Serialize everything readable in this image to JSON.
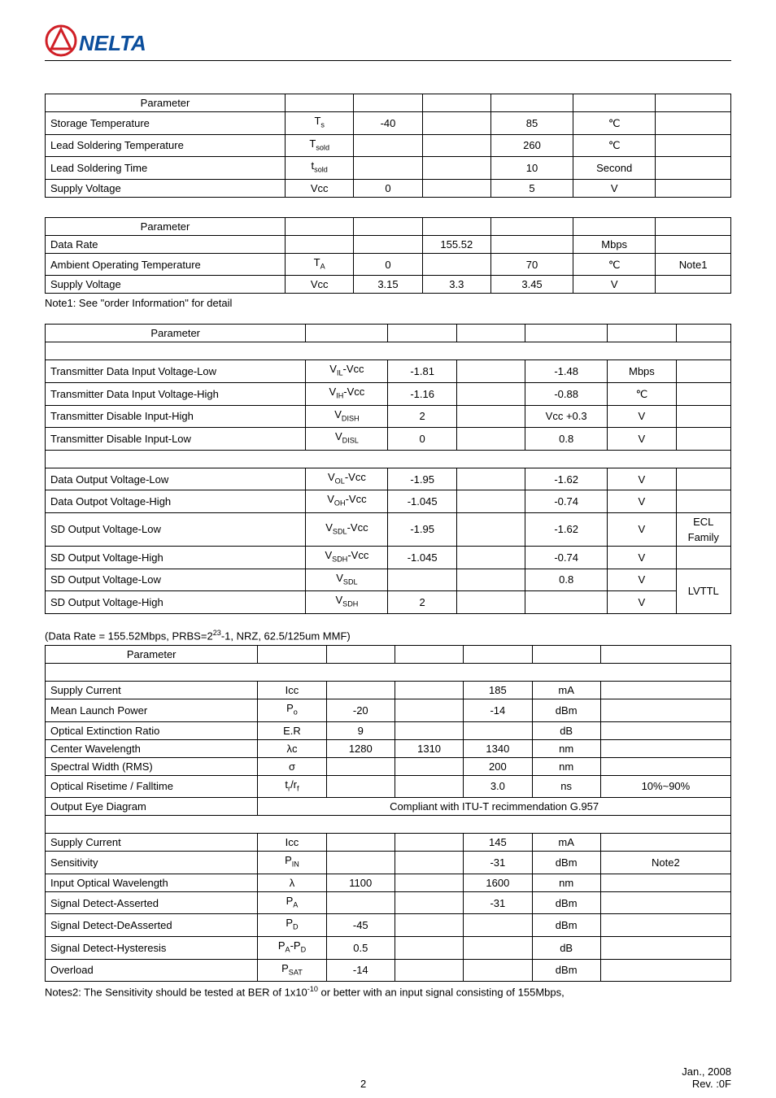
{
  "logo": {
    "text_left": "A",
    "text_right": "NELTA",
    "red": "#d01f26",
    "blue": "#0b4e9c"
  },
  "table1": {
    "col_widths": [
      "35%",
      "10%",
      "10%",
      "10%",
      "12%",
      "12%",
      "11%"
    ],
    "header": [
      "Parameter",
      "",
      "",
      "",
      "",
      "",
      ""
    ],
    "rows": [
      {
        "param": "Storage Temperature",
        "sym": "T<sub>s</sub>",
        "min": "-40",
        "typ": "",
        "max": "85",
        "unit": "℃",
        "note": ""
      },
      {
        "param": "Lead Soldering Temperature",
        "sym": "T<sub>sold</sub>",
        "min": "",
        "typ": "",
        "max": "260",
        "unit": "℃",
        "note": ""
      },
      {
        "param": "Lead Soldering Time",
        "sym": "t<sub>sold</sub>",
        "min": "",
        "typ": "",
        "max": "10",
        "unit": "Second",
        "note": ""
      },
      {
        "param": "Supply Voltage",
        "sym": "Vcc",
        "min": "0",
        "typ": "",
        "max": "5",
        "unit": "V",
        "note": ""
      }
    ]
  },
  "table2": {
    "col_widths": [
      "35%",
      "10%",
      "10%",
      "10%",
      "12%",
      "12%",
      "11%"
    ],
    "header": [
      "Parameter",
      "",
      "",
      "",
      "",
      "",
      ""
    ],
    "rows": [
      {
        "param": "Data Rate",
        "sym": "",
        "min": "",
        "typ": "155.52",
        "max": "",
        "unit": "Mbps",
        "note": ""
      },
      {
        "param": "Ambient Operating Temperature",
        "sym": "T<sub>A</sub>",
        "min": "0",
        "typ": "",
        "max": "70",
        "unit": "℃",
        "note": "Note1"
      },
      {
        "param": "Supply Voltage",
        "sym": "Vcc",
        "min": "3.15",
        "typ": "3.3",
        "max": "3.45",
        "unit": "V",
        "note": ""
      }
    ],
    "footnote": "Note1: See \"order Information\" for detail"
  },
  "table3": {
    "col_widths": [
      "38%",
      "12%",
      "10%",
      "10%",
      "12%",
      "10%",
      "8%"
    ],
    "header": [
      "Parameter",
      "",
      "",
      "",
      "",
      "",
      ""
    ],
    "sections": [
      {
        "subhead": "",
        "rows": [
          {
            "param": "Transmitter Data Input Voltage-Low",
            "sym": "V<sub>IL</sub>-Vcc",
            "min": "-1.81",
            "typ": "",
            "max": "-1.48",
            "unit": "Mbps",
            "note": ""
          },
          {
            "param": "Transmitter Data Input Voltage-High",
            "sym": "V<sub>IH</sub>-Vcc",
            "min": "-1.16",
            "typ": "",
            "max": "-0.88",
            "unit": "℃",
            "note": ""
          },
          {
            "param": "Transmitter Disable Input-High",
            "sym": "V<sub>DISH</sub>",
            "min": "2",
            "typ": "",
            "max": "Vcc +0.3",
            "unit": "V",
            "note": ""
          },
          {
            "param": "Transmitter Disable Input-Low",
            "sym": "V<sub>DISL</sub>",
            "min": "0",
            "typ": "",
            "max": "0.8",
            "unit": "V",
            "note": ""
          }
        ]
      },
      {
        "subhead": "",
        "rows": [
          {
            "param": "Data Output Voltage-Low",
            "sym": "V<sub>OL</sub>-Vcc",
            "min": "-1.95",
            "typ": "",
            "max": "-1.62",
            "unit": "V",
            "note": ""
          },
          {
            "param": "Data Outpot Voltage-High",
            "sym": "V<sub>OH</sub>-Vcc",
            "min": "-1.045",
            "typ": "",
            "max": "-0.74",
            "unit": "V",
            "note": ""
          },
          {
            "param": "SD Output Voltage-Low",
            "sym": "V<sub>SDL</sub>-Vcc",
            "min": "-1.95",
            "typ": "",
            "max": "-1.62",
            "unit": "V",
            "note": "ECL Family"
          },
          {
            "param": "SD Output Voltage-High",
            "sym": "V<sub>SDH</sub>-Vcc",
            "min": "-1.045",
            "typ": "",
            "max": "-0.74",
            "unit": "V",
            "note": ""
          },
          {
            "param": "SD Output Voltage-Low",
            "sym": "V<sub>SDL</sub>",
            "min": "",
            "typ": "",
            "max": "0.8",
            "unit": "V",
            "note": "",
            "span_note": "LVTTL",
            "span_rows": 2
          },
          {
            "param": "SD Output Voltage-High",
            "sym": "V<sub>SDH</sub>",
            "min": "2",
            "typ": "",
            "max": "",
            "unit": "V",
            "span_skip": true
          }
        ]
      }
    ]
  },
  "table4_title": "(Data Rate = 155.52Mbps, PRBS=2<sup>23</sup>-1, NRZ, 62.5/125um MMF)",
  "table4": {
    "col_widths": [
      "31%",
      "10%",
      "10%",
      "10%",
      "10%",
      "10%",
      "19%"
    ],
    "header": [
      "Parameter",
      "",
      "",
      "",
      "",
      "",
      ""
    ],
    "sections": [
      {
        "subhead": "",
        "rows": [
          {
            "param": "Supply Current",
            "sym": "Icc",
            "min": "",
            "typ": "",
            "max": "185",
            "unit": "mA",
            "note": ""
          },
          {
            "param": "Mean Launch Power",
            "sym": "P<sub>o</sub>",
            "min": "-20",
            "typ": "",
            "max": "-14",
            "unit": "dBm",
            "note": ""
          },
          {
            "param": "Optical Extinction Ratio",
            "sym": "E.R",
            "min": "9",
            "typ": "",
            "max": "",
            "unit": "dB",
            "note": ""
          },
          {
            "param": "Center Wavelength",
            "sym": "λc",
            "min": "1280",
            "typ": "1310",
            "max": "1340",
            "unit": "nm",
            "note": ""
          },
          {
            "param": "Spectral Width (RMS)",
            "sym": "σ",
            "min": "",
            "typ": "",
            "max": "200",
            "unit": "nm",
            "note": ""
          },
          {
            "param": "Optical Risetime / Falltime",
            "sym": "t<sub>r</sub>/r<sub>f</sub>",
            "min": "",
            "typ": "",
            "max": "3.0",
            "unit": "ns",
            "note": "10%~90%"
          },
          {
            "param": "Output Eye Diagram",
            "sym": "",
            "min": "",
            "typ": "",
            "max": "",
            "unit": "",
            "note": "",
            "colspan_note": "Compliant with ITU-T recimmendation G.957"
          }
        ]
      },
      {
        "subhead": "",
        "rows": [
          {
            "param": "Supply Current",
            "sym": "Icc",
            "min": "",
            "typ": "",
            "max": "145",
            "unit": "mA",
            "note": ""
          },
          {
            "param": "Sensitivity",
            "sym": "P<sub>IN</sub>",
            "min": "",
            "typ": "",
            "max": "-31",
            "unit": "dBm",
            "note": "Note2"
          },
          {
            "param": "Input Optical Wavelength",
            "sym": "λ",
            "min": "1100",
            "typ": "",
            "max": "1600",
            "unit": "nm",
            "note": ""
          },
          {
            "param": "Signal Detect-Asserted",
            "sym": "P<sub>A</sub>",
            "min": "",
            "typ": "",
            "max": "-31",
            "unit": "dBm",
            "note": ""
          },
          {
            "param": "Signal Detect-DeAsserted",
            "sym": "P<sub>D</sub>",
            "min": "-45",
            "typ": "",
            "max": "",
            "unit": "dBm",
            "note": ""
          },
          {
            "param": "Signal Detect-Hysteresis",
            "sym": "P<sub>A</sub>-P<sub>D</sub>",
            "min": "0.5",
            "typ": "",
            "max": "",
            "unit": "dB",
            "note": ""
          },
          {
            "param": "Overload",
            "sym": "P<sub>SAT</sub>",
            "min": "-14",
            "typ": "",
            "max": "",
            "unit": "dBm",
            "note": ""
          }
        ]
      }
    ],
    "footnote": "Notes2: The Sensitivity should be tested at BER of 1x10<sup>-10</sup> or better with an input signal consisting of 155Mbps,"
  },
  "footer": {
    "page": "2",
    "date": "Jan., 2008",
    "rev": "Rev. :0F"
  }
}
